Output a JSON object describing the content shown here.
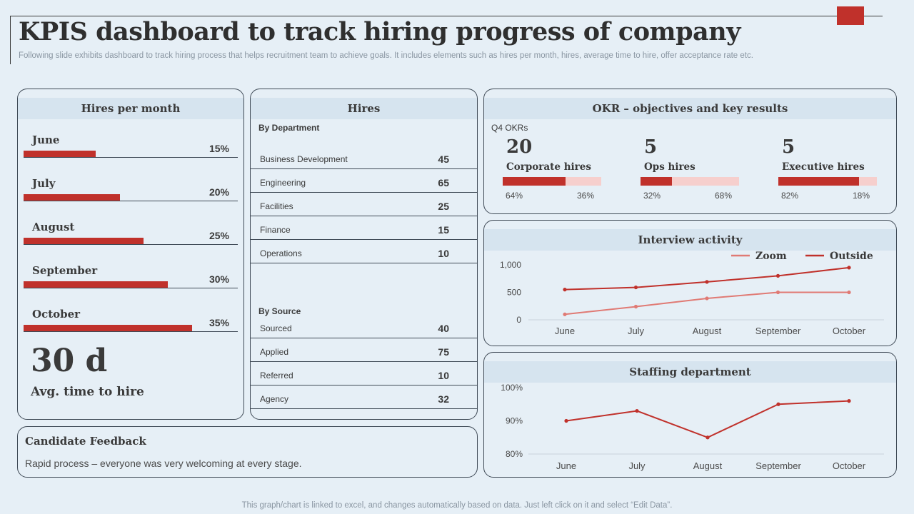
{
  "header": {
    "title": "KPIS dashboard to track hiring progress of company",
    "subtitle": "Following slide exhibits dashboard to track hiring process that helps recruitment team to achieve goals. It includes elements such as hires per month, hires, average time to hire, offer acceptance rate etc."
  },
  "colors": {
    "accent": "#c0312b",
    "light_accent": "#f6cfcd",
    "zoom": "#e07a74",
    "outside": "#c0312b",
    "background": "#e6eff6",
    "header_band": "#d6e4ef"
  },
  "hires_per_month": {
    "title": "Hires per month",
    "months": [
      {
        "name": "June",
        "pct_label": "15%",
        "value": 15
      },
      {
        "name": "July",
        "pct_label": "20%",
        "value": 20
      },
      {
        "name": "August",
        "pct_label": "25%",
        "value": 25
      },
      {
        "name": "September",
        "pct_label": "30%",
        "value": 30
      },
      {
        "name": "October",
        "pct_label": "35%",
        "value": 35
      }
    ],
    "avg_time_value": "30 d",
    "avg_time_label": "Avg. time to hire"
  },
  "hires": {
    "title": "Hires",
    "dept_heading": "By Department",
    "departments": [
      {
        "label": "Business Development",
        "value": "45"
      },
      {
        "label": "Engineering",
        "value": "65"
      },
      {
        "label": "Facilities",
        "value": "25"
      },
      {
        "label": "Finance",
        "value": "15"
      },
      {
        "label": "Operations",
        "value": "10"
      }
    ],
    "source_heading": "By  Source",
    "sources": [
      {
        "label": "Sourced",
        "value": "40"
      },
      {
        "label": "Applied",
        "value": "75"
      },
      {
        "label": "Referred",
        "value": "10"
      },
      {
        "label": "Agency",
        "value": "32"
      }
    ]
  },
  "okr": {
    "title": "OKR – objectives and key results",
    "subtitle": "Q4 OKRs",
    "items": [
      {
        "number": "20",
        "name": "Corporate hires",
        "done_label": "64%",
        "rest_label": "36%",
        "done": 64
      },
      {
        "number": "5",
        "name": "Ops hires",
        "done_label": "32%",
        "rest_label": "68%",
        "done": 32
      },
      {
        "number": "5",
        "name": "Executive hires",
        "done_label": "82%",
        "rest_label": "18%",
        "done": 82
      }
    ]
  },
  "feedback": {
    "title": "Candidate Feedback",
    "text": "Rapid process – everyone was very welcoming at every stage."
  },
  "footer": "This graph/chart is linked to excel,  and changes automatically based on data. Just left click on it and select “Edit Data”.",
  "chart_data": [
    {
      "type": "line",
      "title": "Interview activity",
      "categories": [
        "June",
        "July",
        "August",
        "September",
        "October"
      ],
      "series": [
        {
          "name": "Zoom",
          "values": [
            100,
            240,
            390,
            500,
            500
          ]
        },
        {
          "name": "Outside",
          "values": [
            550,
            590,
            690,
            800,
            950
          ]
        }
      ],
      "yticks": [
        "0",
        "500",
        "1,000"
      ],
      "ylim": [
        0,
        1000
      ],
      "legend": "top-right",
      "grid": false
    },
    {
      "type": "line",
      "title": "Staffing department",
      "categories": [
        "June",
        "July",
        "August",
        "September",
        "October"
      ],
      "series": [
        {
          "name": "Staffing",
          "values": [
            90,
            93,
            85,
            95,
            96
          ]
        }
      ],
      "yticks": [
        "80%",
        "90%",
        "100%"
      ],
      "ylim": [
        80,
        100
      ],
      "legend": "none",
      "grid": false
    }
  ]
}
